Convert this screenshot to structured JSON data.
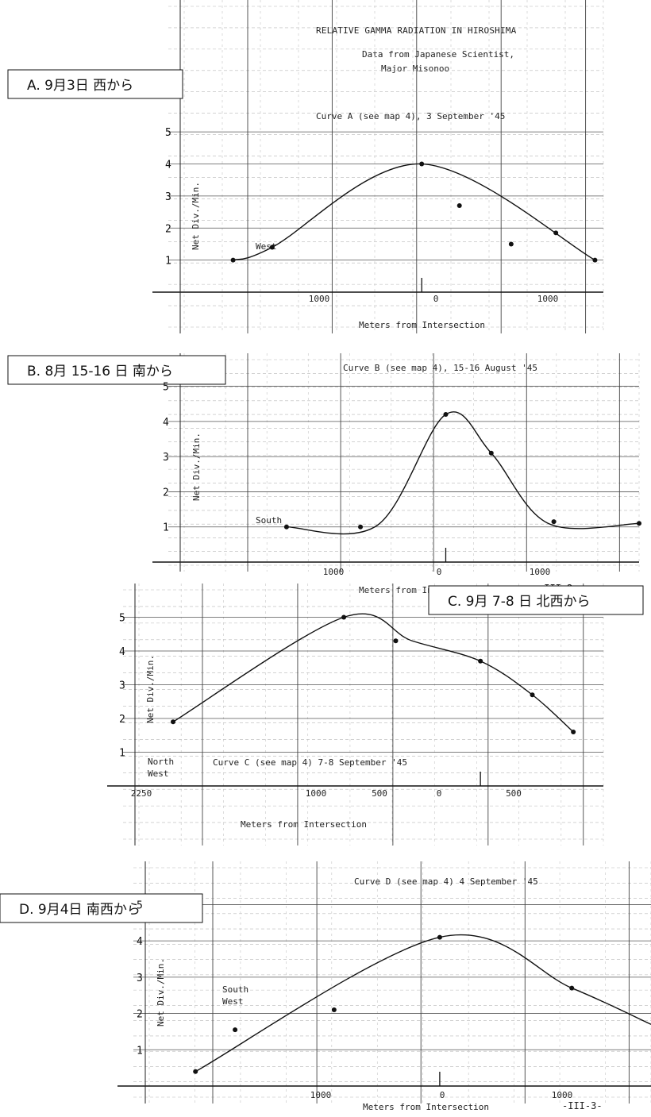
{
  "page": {
    "heading": "RELATIVE GAMMA RADIATION IN HIROSHIMA",
    "source_line1": "Data from Japanese Scientist,",
    "source_line2": "Major Misonoo"
  },
  "chart_data": [
    {
      "type": "line",
      "label_box": "A. 9月3日 西から",
      "title": "Curve A (see map 4), 3 September '45",
      "xlabel": "Meters from Intersection",
      "ylabel": "Net Div./Min.",
      "x_tick_labels": [
        "1000",
        "0",
        "1000"
      ],
      "y_tick_labels": [
        "1",
        "2",
        "3",
        "4",
        "5"
      ],
      "annotations": [
        "West"
      ],
      "page_number": "",
      "xlim": [
        -1700,
        1300
      ],
      "ylim": [
        0,
        5.4
      ],
      "series": [
        {
          "x": [
            -1350,
            -1070,
            0,
            1240
          ],
          "y": [
            1.0,
            1.4,
            4.0,
            1.0
          ],
          "points_x": [
            -1350,
            -1070,
            0,
            270,
            640,
            960,
            1240
          ],
          "points_y": [
            1.0,
            1.4,
            4.0,
            2.7,
            1.5,
            1.85,
            1.0
          ]
        }
      ]
    },
    {
      "type": "line",
      "label_box": "B. 8月 15-16 日 南から",
      "title": "Curve B (see map 4), 15-16 August '45",
      "xlabel": "Meters from Intersection",
      "ylabel": "Net Div./Min.",
      "x_tick_labels": [
        "1000",
        "0",
        "1000"
      ],
      "y_tick_labels": [
        "1",
        "2",
        "3",
        "4",
        "5"
      ],
      "annotations": [
        "South"
      ],
      "page_number": "-III-2-",
      "xlim": [
        -2300,
        1700
      ],
      "ylim": [
        0,
        5.6
      ],
      "series": [
        {
          "x": [
            -1400,
            -600,
            0,
            400,
            900,
            1700
          ],
          "y": [
            1.0,
            1.05,
            4.2,
            3.1,
            1.1,
            1.1
          ],
          "points_x": [
            -1400,
            -750,
            0,
            400,
            950,
            1700
          ],
          "points_y": [
            1.0,
            1.0,
            4.2,
            3.1,
            1.15,
            1.1
          ]
        }
      ]
    },
    {
      "type": "line",
      "label_box": "C. 9月 7-8 日 北西から",
      "title": "Curve C (see map 4) 7-8 September '45",
      "xlabel": "Meters from Intersection",
      "ylabel": "Net Div./Min.",
      "x_tick_labels": [
        "2250",
        "1000",
        "500",
        "0",
        "500"
      ],
      "y_tick_labels": [
        "1",
        "2",
        "3",
        "4",
        "5"
      ],
      "annotations": [
        "North",
        "West"
      ],
      "page_number": "",
      "xlim": [
        -2500,
        900
      ],
      "ylim": [
        0,
        5.6
      ],
      "series": [
        {
          "x": [
            -2250,
            -1000,
            -500,
            0,
            380,
            680
          ],
          "y": [
            1.9,
            5.0,
            4.3,
            3.7,
            2.7,
            1.6
          ],
          "points_x": [
            -2250,
            -1000,
            -620,
            0,
            380,
            680
          ],
          "points_y": [
            1.9,
            5.0,
            4.3,
            3.7,
            2.7,
            1.6
          ]
        }
      ]
    },
    {
      "type": "line",
      "label_box": "D. 9月4日 南西から",
      "title": "Curve D (see map 4) 4 September '45",
      "xlabel": "Meters from Intersection",
      "ylabel": "Net Div./Min.",
      "x_tick_labels": [
        "1000",
        "0",
        "1000"
      ],
      "y_tick_labels": [
        "1",
        "2",
        "3",
        "4",
        "5"
      ],
      "annotations": [
        "South",
        "West"
      ],
      "page_number": "-III-3-",
      "xlim": [
        -2200,
        1600
      ],
      "ylim": [
        0,
        5.6
      ],
      "series": [
        {
          "x": [
            -1850,
            0,
            1000,
            1600
          ],
          "y": [
            0.4,
            4.1,
            2.7,
            1.7
          ],
          "points_x": [
            -1850,
            -1550,
            -800,
            0,
            1000
          ],
          "points_y": [
            0.4,
            1.55,
            2.1,
            4.1,
            2.7
          ]
        }
      ]
    }
  ]
}
